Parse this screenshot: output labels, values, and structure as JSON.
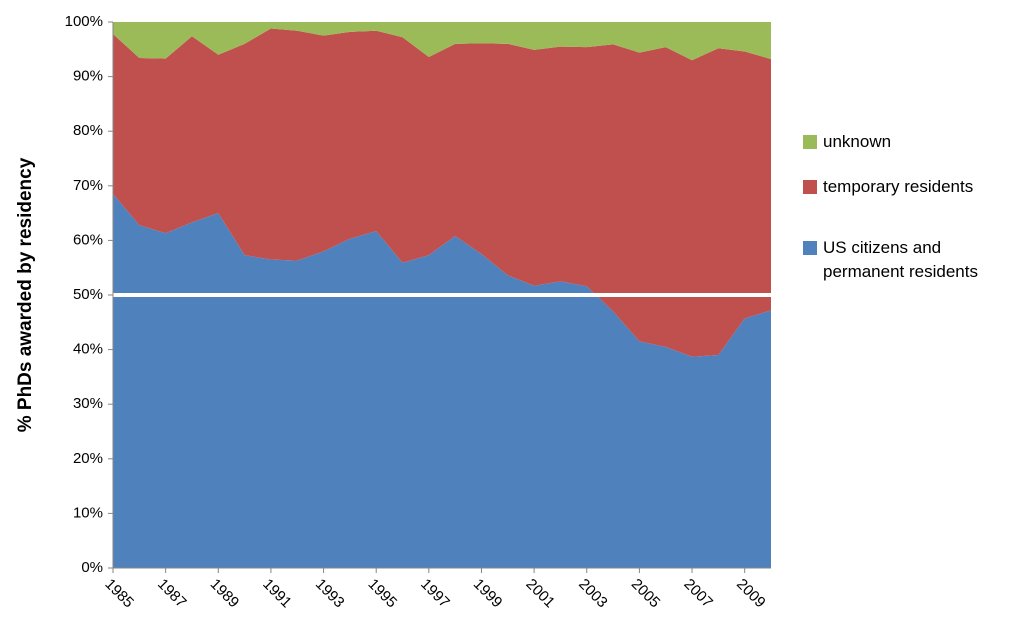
{
  "chart_data": {
    "type": "stacked_area",
    "y_label": "% PhDs awarded by residency",
    "x": [
      1985,
      1986,
      1987,
      1988,
      1989,
      1990,
      1991,
      1992,
      1993,
      1994,
      1995,
      1996,
      1997,
      1998,
      1999,
      2000,
      2001,
      2002,
      2003,
      2004,
      2005,
      2006,
      2007,
      2008,
      2009,
      2010
    ],
    "xlim": [
      1985,
      2010
    ],
    "xticks": [
      1985,
      1987,
      1989,
      1991,
      1993,
      1995,
      1997,
      1999,
      2001,
      2003,
      2005,
      2007,
      2009
    ],
    "ylim": [
      0,
      100
    ],
    "yticks": [
      {
        "value": 0,
        "label": "0%"
      },
      {
        "value": 10,
        "label": "10%"
      },
      {
        "value": 20,
        "label": "20%"
      },
      {
        "value": 30,
        "label": "30%"
      },
      {
        "value": 40,
        "label": "40%"
      },
      {
        "value": 50,
        "label": "50%"
      },
      {
        "value": 60,
        "label": "60%"
      },
      {
        "value": 70,
        "label": "70%"
      },
      {
        "value": 80,
        "label": "80%"
      },
      {
        "value": 90,
        "label": "90%"
      },
      {
        "value": 100,
        "label": "100%"
      }
    ],
    "reference_line": 50,
    "series": [
      {
        "name": "US citizens and permanent residents",
        "color": "#4f81bd",
        "values": [
          68.5,
          62.8,
          61.3,
          63.3,
          65.0,
          57.3,
          56.5,
          56.3,
          58.0,
          60.3,
          61.7,
          55.9,
          57.3,
          60.8,
          57.5,
          53.6,
          51.7,
          52.5,
          51.6,
          47.0,
          41.5,
          40.5,
          38.7,
          39.0,
          45.7,
          47.2
        ]
      },
      {
        "name": "temporary residents",
        "color": "#c0504d",
        "values": [
          29.3,
          30.6,
          32.0,
          34.1,
          29.0,
          38.7,
          42.3,
          42.1,
          39.5,
          37.9,
          36.7,
          41.3,
          36.3,
          35.2,
          38.6,
          42.4,
          43.2,
          43.0,
          43.8,
          48.9,
          52.9,
          54.9,
          54.3,
          56.2,
          48.9,
          46.0
        ]
      },
      {
        "name": "unknown",
        "color": "#9bbb59",
        "values": [
          2.2,
          6.6,
          6.7,
          2.6,
          6.0,
          4.0,
          1.2,
          1.6,
          2.5,
          1.8,
          1.6,
          2.8,
          6.4,
          4.0,
          3.9,
          4.0,
          5.1,
          4.5,
          4.6,
          4.1,
          5.6,
          4.6,
          7.0,
          4.8,
          5.4,
          6.8
        ]
      }
    ]
  }
}
